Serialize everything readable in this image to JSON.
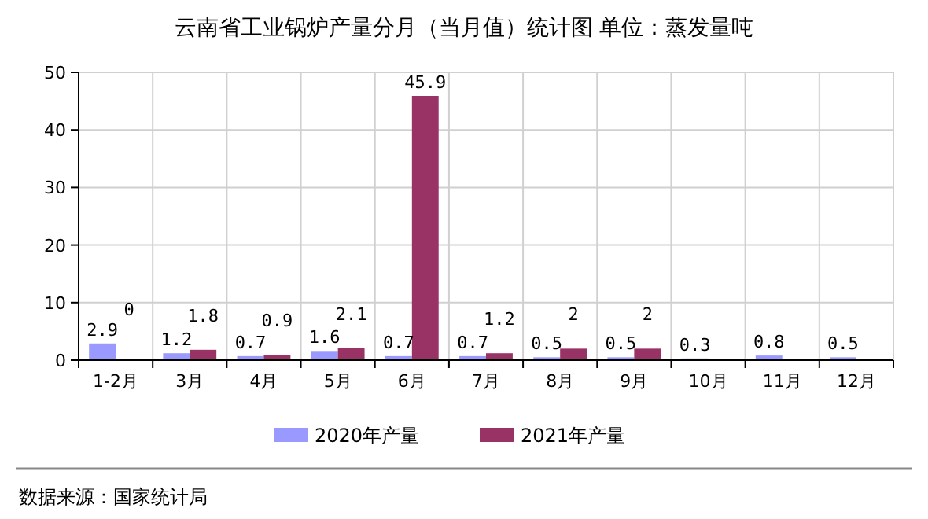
{
  "chart_data": {
    "type": "bar",
    "title": "云南省工业锅炉产量分月（当月值）统计图 单位：蒸发量吨",
    "categories": [
      "1-2月",
      "3月",
      "4月",
      "5月",
      "6月",
      "7月",
      "8月",
      "9月",
      "10月",
      "11月",
      "12月"
    ],
    "series": [
      {
        "name": "2020年产量",
        "color": "#9999ff",
        "values": [
          2.9,
          1.2,
          0.7,
          1.6,
          0.7,
          0.7,
          0.5,
          0.5,
          0.3,
          0.8,
          0.5
        ]
      },
      {
        "name": "2021年产量",
        "color": "#993366",
        "values": [
          0,
          1.8,
          0.9,
          2.1,
          45.9,
          1.2,
          2,
          2,
          null,
          null,
          null
        ]
      }
    ],
    "ylim": [
      0,
      50
    ],
    "yticks": [
      0,
      10,
      20,
      30,
      40,
      50
    ],
    "grid": true,
    "legend": "bottom",
    "data_labels": true,
    "annotations": [
      "数据来源：国家统计局"
    ]
  }
}
